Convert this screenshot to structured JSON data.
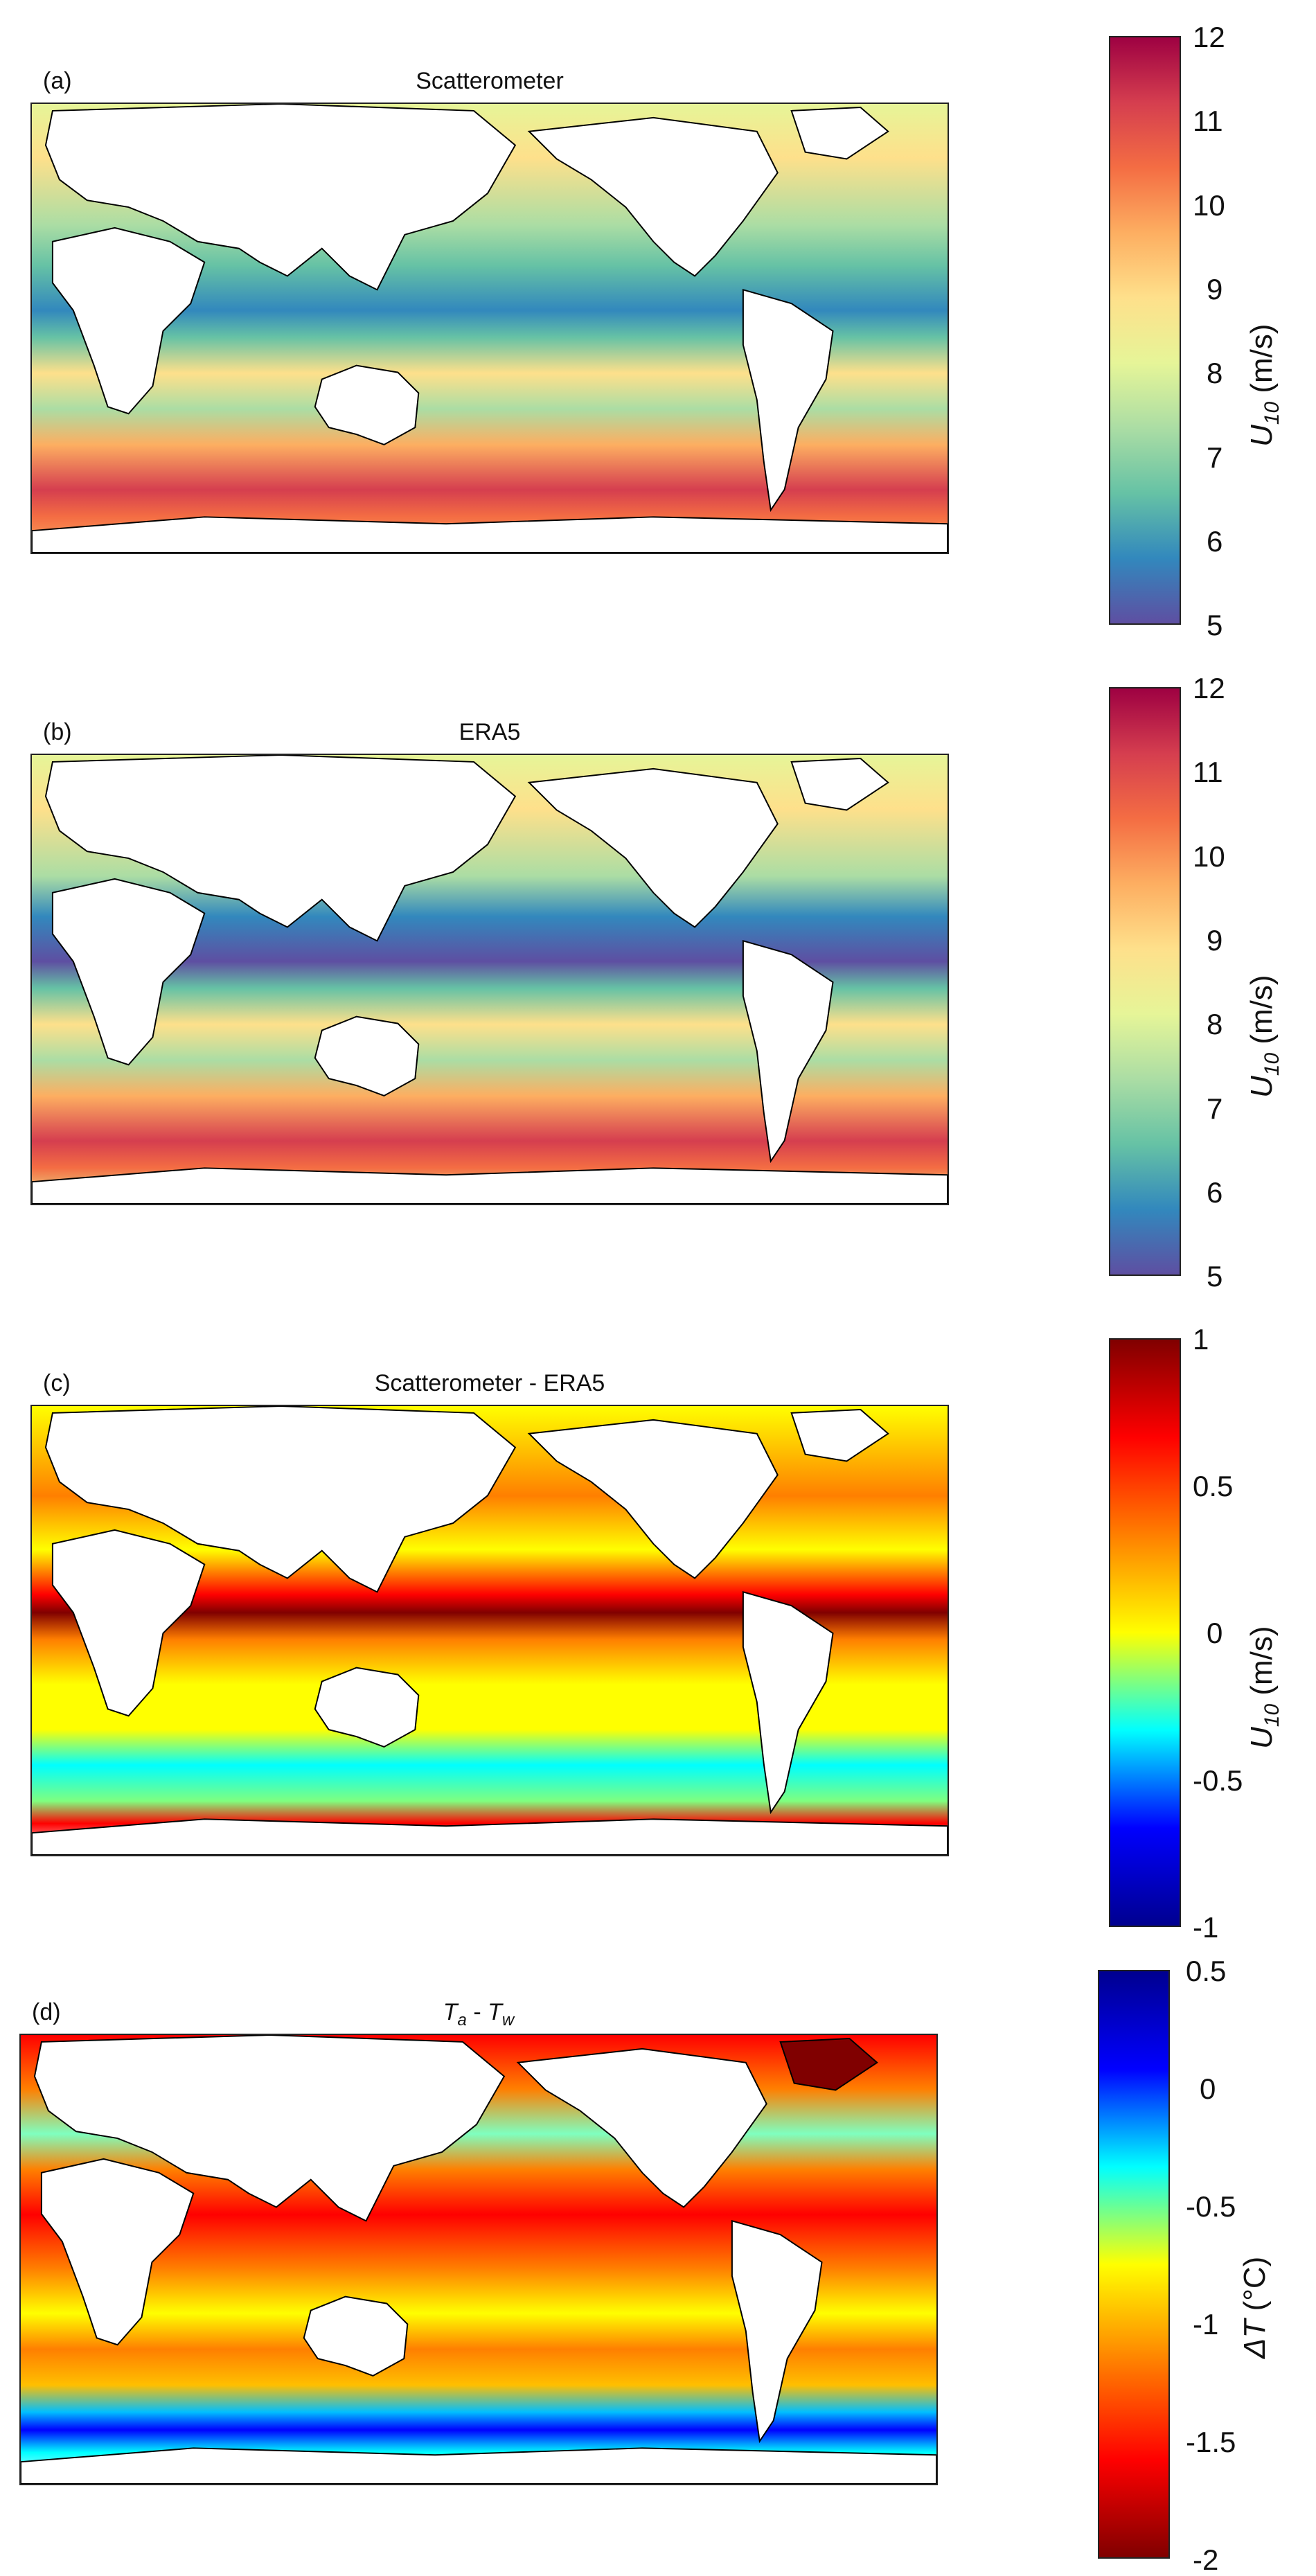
{
  "figure": {
    "panels": [
      {
        "id": "a",
        "letter": "(a)",
        "title_main": "Scatterometer",
        "title_a": "",
        "title_sep": "",
        "title_b": "",
        "colorbar": {
          "colormap": "spectral-reversed",
          "colors": [
            "#5e4fa2",
            "#3288bd",
            "#66c2a5",
            "#abdda4",
            "#e6f598",
            "#fee08b",
            "#fdae61",
            "#f46d43",
            "#d53e4f",
            "#9e0142"
          ],
          "ticks": [
            "12",
            "11",
            "10",
            "9",
            "8",
            "7",
            "6",
            "5"
          ],
          "label_symbol": "U",
          "label_sub": "10",
          "label_unit": " (m/s)",
          "range": [
            5,
            12
          ]
        }
      },
      {
        "id": "b",
        "letter": "(b)",
        "title_main": "ERA5",
        "title_a": "",
        "title_sep": "",
        "title_b": "",
        "colorbar": {
          "colormap": "spectral-reversed",
          "colors": [
            "#5e4fa2",
            "#3288bd",
            "#66c2a5",
            "#abdda4",
            "#e6f598",
            "#fee08b",
            "#fdae61",
            "#f46d43",
            "#d53e4f",
            "#9e0142"
          ],
          "ticks": [
            "12",
            "11",
            "10",
            "9",
            "8",
            "7",
            "6",
            "5"
          ],
          "label_symbol": "U",
          "label_sub": "10",
          "label_unit": " (m/s)",
          "range": [
            5,
            12
          ]
        }
      },
      {
        "id": "c",
        "letter": "(c)",
        "title_main": "Scatterometer - ERA5",
        "title_a": "",
        "title_sep": "",
        "title_b": "",
        "colorbar": {
          "colormap": "jet",
          "colors": [
            "#00008f",
            "#0000ff",
            "#00ffff",
            "#ffff00",
            "#ff7f00",
            "#ff0000",
            "#800000"
          ],
          "ticks": [
            "1",
            "0.5",
            "0",
            "-0.5",
            "-1"
          ],
          "label_symbol": "U",
          "label_sub": "10",
          "label_unit": " (m/s)",
          "range": [
            -1,
            1
          ]
        }
      },
      {
        "id": "d",
        "letter": "(d)",
        "title_main": "",
        "title_a": "T",
        "title_a_sub": "a",
        "title_sep": " - ",
        "title_b": "T",
        "title_b_sub": "w",
        "colorbar": {
          "colormap": "jet-reversed",
          "colors": [
            "#800000",
            "#ff0000",
            "#ff7f00",
            "#ffff00",
            "#00ffff",
            "#0000ff",
            "#00008f"
          ],
          "ticks": [
            "0.5",
            "0",
            "-0.5",
            "-1",
            "-1.5",
            "-2"
          ],
          "label_symbol": "ΔT",
          "label_sub": "",
          "label_unit": " (°C)",
          "range": [
            -2,
            0.5
          ]
        }
      }
    ]
  }
}
